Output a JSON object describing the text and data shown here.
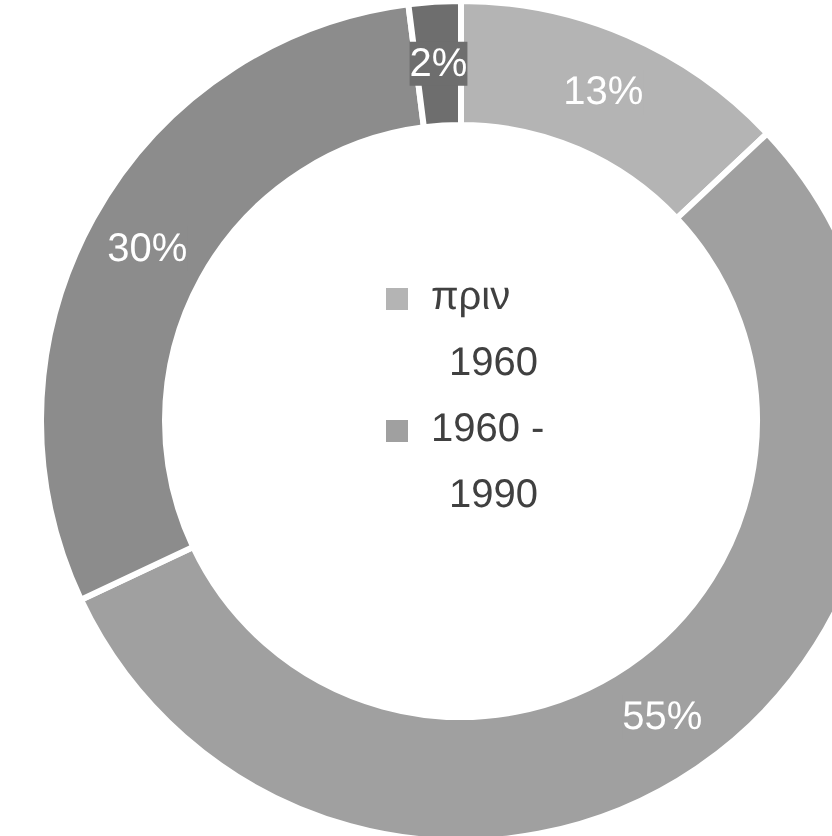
{
  "chart_data": {
    "type": "donut",
    "categories": [
      "πριν 1960",
      "1960 - 1990",
      null,
      null
    ],
    "values": [
      13,
      55,
      30,
      2
    ],
    "colors": [
      "#b4b4b4",
      "#a0a0a0",
      "#8c8c8c",
      "#6e6e6e"
    ],
    "value_labels": [
      "13%",
      "55%",
      "30%",
      "2%"
    ],
    "legend": "center"
  }
}
